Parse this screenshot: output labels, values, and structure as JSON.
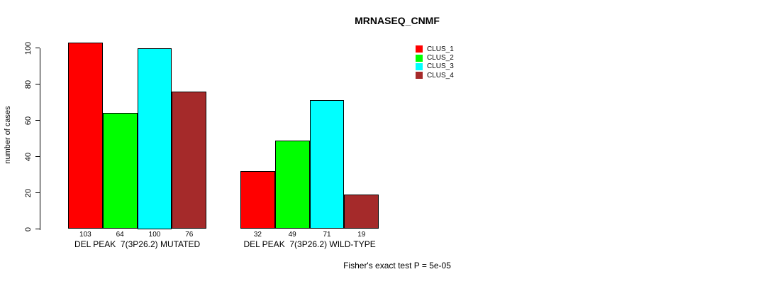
{
  "chart": {
    "title": "MRNASEQ_CNMF",
    "ylabel": "number of cases",
    "footer": "Fisher's exact test P = 5e-05"
  },
  "chart_data": {
    "type": "bar",
    "title": "MRNASEQ_CNMF",
    "xlabel": "",
    "ylabel": "number of cases",
    "ylim": [
      0,
      100
    ],
    "yticks": [
      0,
      20,
      40,
      60,
      80,
      100
    ],
    "grid": false,
    "legend_position": "top-right",
    "categories": [
      "DEL PEAK  7(3P26.2) MUTATED",
      "DEL PEAK  7(3P26.2) WILD-TYPE"
    ],
    "series": [
      {
        "name": "CLUS_1",
        "color": "#FF0000",
        "values": [
          103,
          32
        ]
      },
      {
        "name": "CLUS_2",
        "color": "#00FF00",
        "values": [
          64,
          49
        ]
      },
      {
        "name": "CLUS_3",
        "color": "#00FFFF",
        "values": [
          100,
          71
        ]
      },
      {
        "name": "CLUS_4",
        "color": "#A52A2A",
        "values": [
          76,
          19
        ]
      }
    ],
    "bar_value_labels": [
      [
        103,
        64,
        100,
        76
      ],
      [
        32,
        49,
        71,
        19
      ]
    ],
    "annotation": "Fisher's exact test P = 5e-05"
  }
}
